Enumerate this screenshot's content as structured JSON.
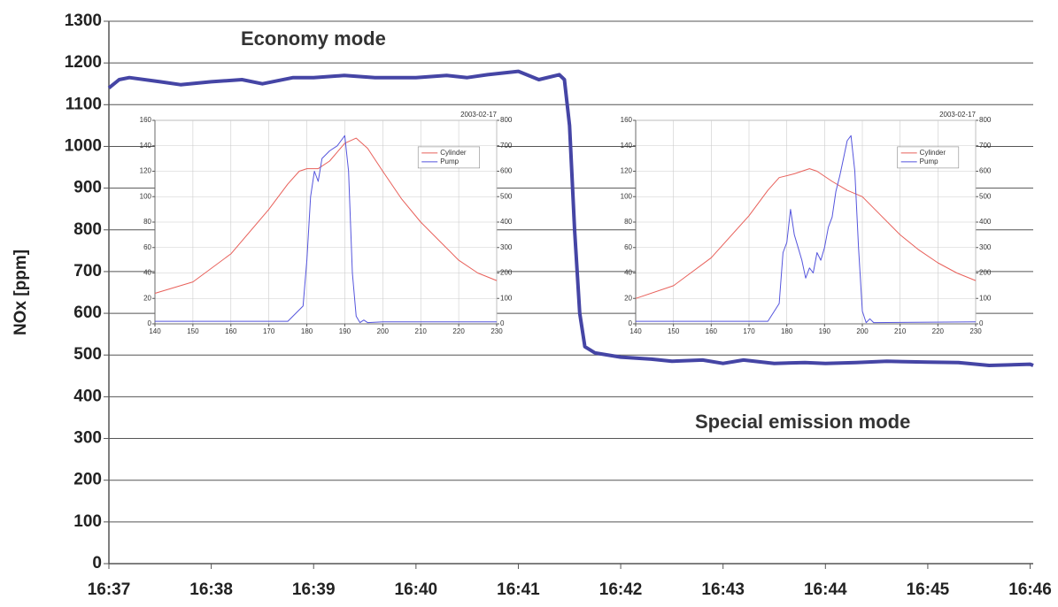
{
  "chart_data": [
    {
      "type": "line",
      "ylabel": "NOx [ppm]",
      "annotations": [
        {
          "text": "Economy mode"
        },
        {
          "text": "Special emission mode"
        }
      ],
      "xlim": [
        37,
        46.03
      ],
      "ylim": [
        0,
        1300
      ],
      "xticks": [
        {
          "value": 37,
          "label": "16:37"
        },
        {
          "value": 38,
          "label": "16:38"
        },
        {
          "value": 39,
          "label": "16:39"
        },
        {
          "value": 40,
          "label": "16:40"
        },
        {
          "value": 41,
          "label": "16:41"
        },
        {
          "value": 42,
          "label": "16:42"
        },
        {
          "value": 43,
          "label": "16:43"
        },
        {
          "value": 44,
          "label": "16:44"
        },
        {
          "value": 45,
          "label": "16:45"
        },
        {
          "value": 46,
          "label": "16:46"
        }
      ],
      "yticks": [
        0,
        100,
        200,
        300,
        400,
        500,
        600,
        700,
        800,
        900,
        1000,
        1100,
        1200,
        1300
      ],
      "grid": "y",
      "series": [
        {
          "color": "#4545a5",
          "x": [
            37,
            37.1,
            37.2,
            37.5,
            37.7,
            38,
            38.3,
            38.5,
            38.8,
            39,
            39.3,
            39.6,
            40,
            40.3,
            40.5,
            40.7,
            41,
            41.2,
            41.4,
            41.45,
            41.5,
            41.55,
            41.6,
            41.65,
            41.75,
            42,
            42.3,
            42.5,
            42.8,
            43,
            43.2,
            43.5,
            43.8,
            44,
            44.3,
            44.6,
            45,
            45.3,
            45.6,
            46,
            46.03
          ],
          "values": [
            1140,
            1160,
            1165,
            1155,
            1148,
            1155,
            1160,
            1150,
            1165,
            1165,
            1170,
            1165,
            1165,
            1170,
            1165,
            1172,
            1180,
            1160,
            1172,
            1160,
            1050,
            800,
            600,
            520,
            505,
            495,
            490,
            485,
            488,
            480,
            488,
            480,
            482,
            480,
            482,
            485,
            483,
            482,
            475,
            478,
            475
          ]
        }
      ]
    },
    {
      "type": "line",
      "annotations": [
        {
          "text": "2003-02-17"
        }
      ],
      "xlim": [
        140,
        230
      ],
      "ylim": [
        0,
        160
      ],
      "y2lim": [
        0,
        800
      ],
      "xticks": [
        140,
        150,
        160,
        170,
        180,
        190,
        200,
        210,
        220,
        230
      ],
      "yticks": [
        0,
        20,
        40,
        60,
        80,
        100,
        120,
        140,
        160
      ],
      "y2ticks": [
        0,
        100,
        200,
        300,
        400,
        500,
        600,
        700,
        800
      ],
      "grid": "xy",
      "legend": "upper right",
      "series": [
        {
          "name": "Cylinder",
          "color": "#e8605a",
          "x": [
            140,
            150,
            160,
            170,
            175,
            178,
            180,
            183,
            186,
            190,
            193,
            196,
            200,
            205,
            210,
            215,
            220,
            225,
            230
          ],
          "values": [
            24,
            33,
            55,
            90,
            110,
            120,
            122,
            122,
            128,
            142,
            146,
            138,
            120,
            98,
            80,
            65,
            50,
            40,
            34
          ]
        },
        {
          "name": "Pump",
          "color": "#5555dd",
          "axis": "y2",
          "x": [
            140,
            170,
            175,
            177,
            179,
            180,
            181,
            182,
            183,
            184,
            186,
            188,
            189,
            190,
            191,
            192,
            193,
            194,
            195,
            196,
            200,
            230
          ],
          "values": [
            10,
            10,
            10,
            40,
            70,
            250,
            500,
            600,
            560,
            650,
            680,
            700,
            720,
            740,
            600,
            200,
            30,
            5,
            15,
            5,
            8,
            8
          ]
        }
      ]
    },
    {
      "type": "line",
      "annotations": [
        {
          "text": "2003-02-17"
        }
      ],
      "xlim": [
        140,
        230
      ],
      "ylim": [
        0,
        160
      ],
      "y2lim": [
        0,
        800
      ],
      "xticks": [
        140,
        150,
        160,
        170,
        180,
        190,
        200,
        210,
        220,
        230
      ],
      "yticks": [
        0,
        20,
        40,
        60,
        80,
        100,
        120,
        140,
        160
      ],
      "y2ticks": [
        0,
        100,
        200,
        300,
        400,
        500,
        600,
        700,
        800
      ],
      "grid": "xy",
      "legend": "upper right",
      "series": [
        {
          "name": "Cylinder",
          "color": "#e8605a",
          "x": [
            140,
            150,
            160,
            170,
            175,
            178,
            182,
            186,
            188,
            192,
            196,
            200,
            205,
            210,
            215,
            220,
            225,
            230
          ],
          "values": [
            20,
            30,
            52,
            85,
            105,
            115,
            118,
            122,
            120,
            112,
            105,
            100,
            85,
            70,
            58,
            48,
            40,
            34
          ]
        },
        {
          "name": "Pump",
          "color": "#5555dd",
          "axis": "y2",
          "x": [
            140,
            175,
            178,
            179,
            180,
            181,
            182,
            183,
            184,
            185,
            186,
            187,
            188,
            189,
            190,
            191,
            192,
            193,
            194,
            195,
            196,
            197,
            198,
            199,
            200,
            201,
            202,
            203,
            230
          ],
          "values": [
            10,
            10,
            80,
            280,
            320,
            450,
            350,
            300,
            250,
            180,
            220,
            200,
            280,
            250,
            300,
            380,
            420,
            520,
            580,
            650,
            720,
            740,
            600,
            300,
            50,
            5,
            20,
            5,
            8
          ]
        }
      ]
    }
  ]
}
